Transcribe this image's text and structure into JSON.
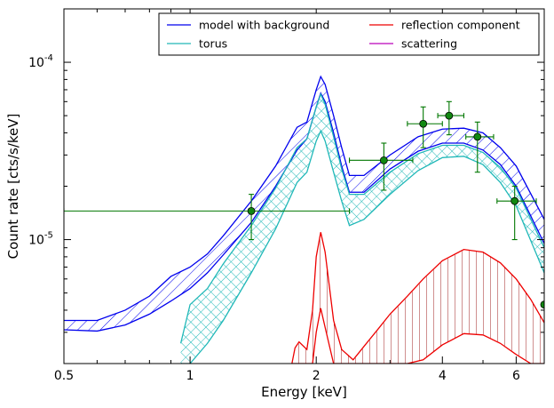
{
  "chart_data": {
    "type": "line",
    "title": "",
    "xlabel": "Energy [keV]",
    "ylabel": "Count rate [cts/s/keV]",
    "x_scale": "log",
    "y_scale": "log",
    "xlim": [
      0.5,
      7.0
    ],
    "ylim": [
      2e-06,
      0.0002
    ],
    "x_ticks": [
      {
        "value": 0.5,
        "label": "0.5"
      },
      {
        "value": 1,
        "label": "1"
      },
      {
        "value": 2,
        "label": "2"
      },
      {
        "value": 4,
        "label": "4"
      },
      {
        "value": 6,
        "label": "6"
      }
    ],
    "y_ticks": [
      {
        "value": 1e-05,
        "base": "10",
        "exp": "-5"
      },
      {
        "value": 0.0001,
        "base": "10",
        "exp": "-4"
      }
    ],
    "grid": false,
    "legend": {
      "placement": "top-right",
      "entries": [
        {
          "label": "model with background",
          "color": "#0000ee"
        },
        {
          "label": "reflection component",
          "color": "#ee0000"
        },
        {
          "label": "torus",
          "color": "#20b8b8"
        },
        {
          "label": "scattering",
          "color": "#bb00bb"
        }
      ]
    },
    "colors": {
      "model": "#0000ee",
      "torus": "#20b8b8",
      "reflection": "#ee0000",
      "reflection_hatch": "#a02020",
      "data_points": "#007700",
      "data_marker_fill": "#118811"
    },
    "series": [
      {
        "name": "model with background",
        "band": "hatched",
        "x": [
          0.5,
          0.6,
          0.7,
          0.8,
          0.9,
          1.0,
          1.1,
          1.2,
          1.4,
          1.6,
          1.8,
          1.9,
          2.0,
          2.05,
          2.1,
          2.2,
          2.3,
          2.4,
          2.6,
          3.0,
          3.5,
          4.0,
          4.5,
          5.0,
          5.5,
          6.0,
          7.0
        ],
        "upper": [
          3.5e-06,
          3.5e-06,
          4e-06,
          4.8e-06,
          6.2e-06,
          7e-06,
          8.3e-06,
          1.05e-05,
          1.65e-05,
          2.6e-05,
          4.3e-05,
          4.6e-05,
          7e-05,
          8.3e-05,
          7.5e-05,
          5e-05,
          3.3e-05,
          2.3e-05,
          2.3e-05,
          3e-05,
          3.8e-05,
          4.2e-05,
          4.25e-05,
          4e-05,
          3.3e-05,
          2.6e-05,
          1.3e-05
        ],
        "lower": [
          3.1e-06,
          3.05e-06,
          3.3e-06,
          3.8e-06,
          4.5e-06,
          5.3e-06,
          6.5e-06,
          8.2e-06,
          1.25e-05,
          2e-05,
          3.2e-05,
          3.7e-05,
          5.6e-05,
          6.7e-05,
          6e-05,
          4e-05,
          2.6e-05,
          1.85e-05,
          1.85e-05,
          2.5e-05,
          3.15e-05,
          3.5e-05,
          3.5e-05,
          3.2e-05,
          2.65e-05,
          2e-05,
          9.5e-06
        ]
      },
      {
        "name": "torus",
        "band": "cross-hatched",
        "x": [
          0.95,
          1.0,
          1.1,
          1.2,
          1.4,
          1.6,
          1.8,
          1.9,
          2.0,
          2.05,
          2.1,
          2.2,
          2.3,
          2.4,
          2.6,
          3.0,
          3.5,
          4.0,
          4.5,
          5.0,
          5.5,
          6.0,
          7.0
        ],
        "upper": [
          2.6e-06,
          4.3e-06,
          5.3e-06,
          7.3e-06,
          1.2e-05,
          1.95e-05,
          3.3e-05,
          3.7e-05,
          5.6e-05,
          6.6e-05,
          5.8e-05,
          3.8e-05,
          2.5e-05,
          1.8e-05,
          1.8e-05,
          2.4e-05,
          3.05e-05,
          3.4e-05,
          3.4e-05,
          3.1e-05,
          2.55e-05,
          1.95e-05,
          9e-06
        ],
        "lower": [
          2e-06,
          2e-06,
          2.6e-06,
          3.5e-06,
          6.5e-06,
          1.15e-05,
          2.1e-05,
          2.4e-05,
          3.6e-05,
          4.1e-05,
          3.6e-05,
          2.4e-05,
          1.65e-05,
          1.2e-05,
          1.3e-05,
          1.8e-05,
          2.45e-05,
          2.9e-05,
          2.95e-05,
          2.65e-05,
          2.1e-05,
          1.55e-05,
          6.5e-06
        ]
      },
      {
        "name": "reflection component",
        "band": "vertical-hatched",
        "x": [
          1.75,
          1.78,
          1.82,
          1.9,
          1.96,
          2.0,
          2.05,
          2.1,
          2.2,
          2.3,
          2.45,
          2.6,
          2.8,
          3.0,
          3.3,
          3.6,
          4.0,
          4.5,
          5.0,
          5.5,
          6.0,
          6.5,
          7.0
        ],
        "upper": [
          2e-06,
          2.45e-06,
          2.65e-06,
          2.4e-06,
          4e-06,
          8e-06,
          1.1e-05,
          8.5e-06,
          3.5e-06,
          2.4e-06,
          2.1e-06,
          2.5e-06,
          3.1e-06,
          3.8e-06,
          4.8e-06,
          6e-06,
          7.6e-06,
          8.8e-06,
          8.5e-06,
          7.4e-06,
          6e-06,
          4.6e-06,
          3.4e-06
        ],
        "lower": [
          2e-06,
          2e-06,
          2e-06,
          2e-06,
          2e-06,
          3e-06,
          4.1e-06,
          3.2e-06,
          2e-06,
          2e-06,
          2e-06,
          2e-06,
          2e-06,
          2e-06,
          2e-06,
          2.1e-06,
          2.55e-06,
          2.95e-06,
          2.9e-06,
          2.6e-06,
          2.25e-06,
          2e-06,
          2e-06
        ]
      }
    ],
    "data_points": [
      {
        "x": 1.4,
        "y": 1.45e-05,
        "xerr": [
          0.5,
          2.4
        ],
        "yerr": [
          1e-05,
          1.8e-05
        ]
      },
      {
        "x": 2.9,
        "y": 2.8e-05,
        "xerr": [
          2.4,
          3.4
        ],
        "yerr": [
          1.9e-05,
          3.5e-05
        ]
      },
      {
        "x": 3.6,
        "y": 4.5e-05,
        "xerr": [
          3.3,
          4.0
        ],
        "yerr": [
          3.3e-05,
          5.6e-05
        ]
      },
      {
        "x": 4.15,
        "y": 5e-05,
        "xerr": [
          3.9,
          4.5
        ],
        "yerr": [
          3.9e-05,
          6e-05
        ]
      },
      {
        "x": 4.85,
        "y": 3.8e-05,
        "xerr": [
          4.55,
          5.3
        ],
        "yerr": [
          2.4e-05,
          4.6e-05
        ]
      },
      {
        "x": 5.95,
        "y": 1.65e-05,
        "xerr": [
          5.4,
          6.7
        ],
        "yerr": [
          1e-05,
          2e-05
        ]
      },
      {
        "x": 7.0,
        "y": 4.3e-06,
        "xerr": [
          6.9,
          7.0
        ],
        "yerr": [
          4.3e-06,
          4.3e-06
        ]
      }
    ]
  }
}
